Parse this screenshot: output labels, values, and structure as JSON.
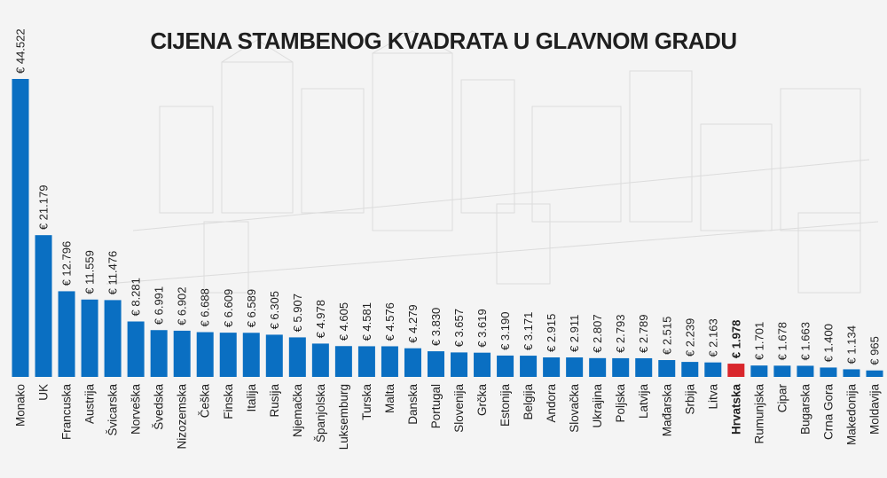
{
  "chart_data": {
    "type": "bar",
    "title": "CIJENA STAMBENOG KVADRATA U GLAVNOM GRADU",
    "categories": [
      "Monako",
      "UK",
      "Francuska",
      "Austrija",
      "Švicarska",
      "Norveška",
      "Švedska",
      "Nizozemska",
      "Češka",
      "Finska",
      "Italija",
      "Rusija",
      "Njemačka",
      "Španjolska",
      "Luksemburg",
      "Turska",
      "Malta",
      "Danska",
      "Portugal",
      "Slovenija",
      "Grčka",
      "Estonija",
      "Belgija",
      "Andora",
      "Slovačka",
      "Ukrajina",
      "Poljska",
      "Latvija",
      "Mađarska",
      "Srbija",
      "Litva",
      "Hrvatska",
      "Rumunjska",
      "Cipar",
      "Bugarska",
      "Crna Gora",
      "Makedonija",
      "Moldavija"
    ],
    "values": [
      44522,
      21179,
      12796,
      11559,
      11476,
      8281,
      6991,
      6902,
      6688,
      6609,
      6589,
      6305,
      5907,
      4978,
      4605,
      4581,
      4576,
      4279,
      3830,
      3657,
      3619,
      3190,
      3171,
      2915,
      2911,
      2807,
      2793,
      2789,
      2515,
      2239,
      2163,
      1978,
      1701,
      1678,
      1663,
      1400,
      1134,
      965
    ],
    "value_labels": [
      "€ 44.522",
      "€ 21.179",
      "€ 12.796",
      "€ 11.559",
      "€ 11.476",
      "€ 8.281",
      "€ 6.991",
      "€ 6.902",
      "€ 6.688",
      "€ 6.609",
      "€ 6.589",
      "€ 6.305",
      "€ 5.907",
      "€ 4.978",
      "€ 4.605",
      "€ 4.581",
      "€ 4.576",
      "€ 4.279",
      "€ 3.830",
      "€ 3.657",
      "€ 3.619",
      "€ 3.190",
      "€ 3.171",
      "€ 2.915",
      "€ 2.911",
      "€ 2.807",
      "€ 2.793",
      "€ 2.789",
      "€ 2.515",
      "€ 2.239",
      "€ 2.163",
      "€ 1.978",
      "€ 1.701",
      "€ 1.678",
      "€ 1.663",
      "€ 1.400",
      "€ 1.134",
      "€ 965"
    ],
    "highlight": "Hrvatska",
    "ylim": [
      0,
      44522
    ],
    "grid": false,
    "colors": {
      "bar": "#0a6fc2",
      "highlight": "#d9262c",
      "text": "#222222",
      "background": "#f4f4f4"
    }
  }
}
